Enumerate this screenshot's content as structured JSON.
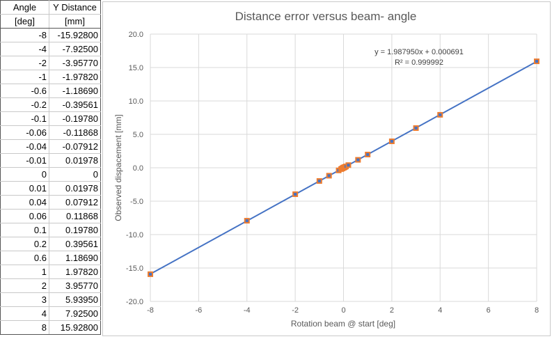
{
  "table": {
    "headers": [
      [
        "Angle",
        "Y Distance"
      ],
      [
        "[deg]",
        "[mm]"
      ]
    ],
    "rows": [
      [
        "-8",
        "-15.92800"
      ],
      [
        "-4",
        "-7.92500"
      ],
      [
        "-2",
        "-3.95770"
      ],
      [
        "-1",
        "-1.97820"
      ],
      [
        "-0.6",
        "-1.18690"
      ],
      [
        "-0.2",
        "-0.39561"
      ],
      [
        "-0.1",
        "-0.19780"
      ],
      [
        "-0.06",
        "-0.11868"
      ],
      [
        "-0.04",
        "-0.07912"
      ],
      [
        "-0.01",
        "0.01978"
      ],
      [
        "0",
        "0"
      ],
      [
        "0.01",
        "0.01978"
      ],
      [
        "0.04",
        "0.07912"
      ],
      [
        "0.06",
        "0.11868"
      ],
      [
        "0.1",
        "0.19780"
      ],
      [
        "0.2",
        "0.39561"
      ],
      [
        "0.6",
        "1.18690"
      ],
      [
        "1",
        "1.97820"
      ],
      [
        "2",
        "3.95770"
      ],
      [
        "3",
        "5.93950"
      ],
      [
        "4",
        "7.92500"
      ],
      [
        "8",
        "15.92800"
      ]
    ]
  },
  "chart_data": {
    "type": "scatter",
    "title": "Distance error versus beam- angle",
    "xlabel": "Rotation beam @ start [deg]",
    "ylabel": "Observed dispacement [mm]",
    "xlim": [
      -8,
      8
    ],
    "ylim": [
      -20,
      20
    ],
    "x_ticks": [
      -8,
      -6,
      -4,
      -2,
      0,
      2,
      4,
      6,
      8
    ],
    "y_ticks": [
      20,
      15,
      10,
      5,
      0,
      -5,
      -10,
      -15,
      -20
    ],
    "y_tick_labels": [
      "20.0",
      "15.0",
      "10.0",
      "5.0",
      "0.0",
      "-5.0",
      "-10.0",
      "-15.0",
      "-20.0"
    ],
    "grid": true,
    "x": [
      -8,
      -4,
      -2,
      -1,
      -0.6,
      -0.2,
      -0.1,
      -0.06,
      -0.04,
      -0.01,
      0,
      0.01,
      0.04,
      0.06,
      0.1,
      0.2,
      0.6,
      1,
      2,
      3,
      4,
      8
    ],
    "y": [
      -15.928,
      -7.925,
      -3.9577,
      -1.9782,
      -1.1869,
      -0.39561,
      -0.1978,
      -0.11868,
      -0.07912,
      0.01978,
      0,
      0.01978,
      0.07912,
      0.11868,
      0.1978,
      0.39561,
      1.1869,
      1.9782,
      3.9577,
      5.9395,
      7.925,
      15.928
    ],
    "trendline": {
      "slope": 1.98795,
      "intercept": 0.000691
    },
    "annotations": [
      "y = 1.987950x + 0.000691",
      "R² = 0.999992"
    ],
    "colors": {
      "marker": "#ed7d31",
      "marker_inner": "#4472c4",
      "line": "#4472c4",
      "grid": "#d9d9d9"
    }
  }
}
